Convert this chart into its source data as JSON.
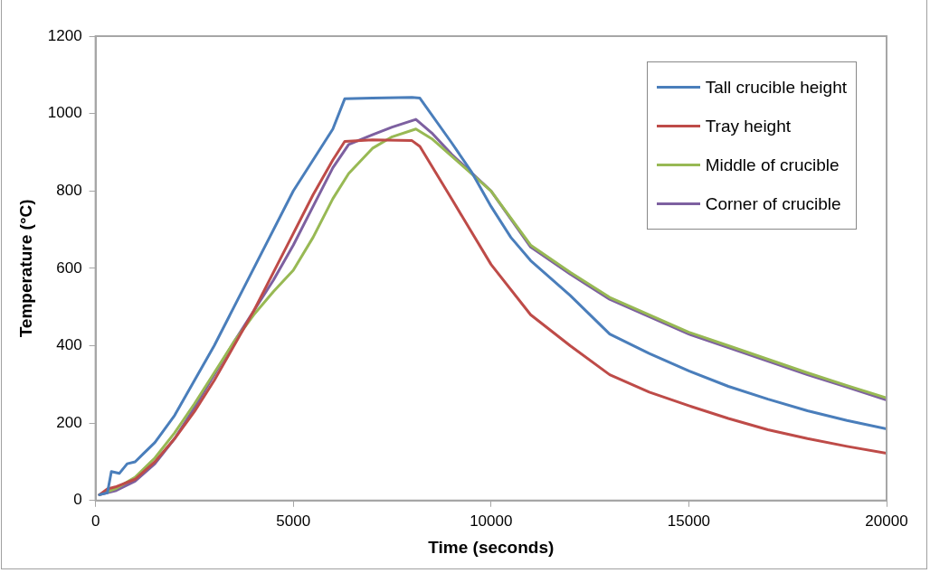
{
  "chart_data": {
    "type": "line",
    "xlabel": "Time (seconds)",
    "ylabel": "Temperature (°C)",
    "xlim": [
      0,
      20000
    ],
    "xticks": [
      0,
      5000,
      10000,
      15000,
      20000
    ],
    "ylim": [
      0,
      1200
    ],
    "yticks": [
      0,
      200,
      400,
      600,
      800,
      1000,
      1200
    ],
    "grid": false,
    "legend": "top right",
    "marker": "none",
    "line_style": "solid",
    "series": [
      {
        "name": "Tall crucible height",
        "color": "#4a7ebb",
        "x": [
          100,
          300,
          400,
          600,
          800,
          1000,
          1200,
          1500,
          2000,
          3000,
          4000,
          5000,
          6000,
          6300,
          7000,
          8000,
          8200,
          9000,
          9500,
          10000,
          10500,
          11000,
          12000,
          13000,
          14000,
          15000,
          16000,
          17000,
          18000,
          19000,
          20000
        ],
        "values": [
          15,
          20,
          75,
          70,
          95,
          100,
          120,
          150,
          220,
          400,
          600,
          800,
          960,
          1038,
          1040,
          1042,
          1040,
          925,
          850,
          760,
          680,
          620,
          530,
          430,
          380,
          335,
          295,
          262,
          232,
          207,
          185
        ]
      },
      {
        "name": "Tray height",
        "color": "#be4b48",
        "x": [
          100,
          300,
          500,
          1000,
          1500,
          2000,
          2500,
          3000,
          3500,
          4000,
          4500,
          5000,
          5500,
          6000,
          6300,
          7000,
          8000,
          8200,
          9000,
          10000,
          11000,
          12000,
          13000,
          14000,
          15000,
          16000,
          17000,
          18000,
          19000,
          20000
        ],
        "values": [
          15,
          30,
          35,
          55,
          100,
          160,
          230,
          310,
          400,
          490,
          590,
          690,
          790,
          880,
          928,
          932,
          930,
          915,
          780,
          610,
          480,
          400,
          325,
          280,
          245,
          212,
          183,
          160,
          140,
          122
        ]
      },
      {
        "name": "Middle of crucible",
        "color": "#98b954",
        "x": [
          100,
          500,
          1000,
          1500,
          2000,
          2500,
          3000,
          3500,
          4000,
          4500,
          5000,
          5500,
          6000,
          6400,
          7000,
          7500,
          8100,
          8500,
          9000,
          10000,
          11000,
          12000,
          13000,
          14000,
          15000,
          16000,
          17000,
          18000,
          19000,
          20000
        ],
        "values": [
          15,
          30,
          60,
          110,
          175,
          250,
          330,
          410,
          480,
          540,
          595,
          680,
          780,
          845,
          910,
          940,
          960,
          935,
          890,
          800,
          660,
          590,
          525,
          480,
          435,
          400,
          365,
          330,
          297,
          265
        ]
      },
      {
        "name": "Corner of crucible",
        "color": "#7d60a0",
        "x": [
          100,
          500,
          1000,
          1500,
          2000,
          2500,
          3000,
          3500,
          4000,
          4500,
          5000,
          5500,
          6000,
          6400,
          7000,
          7500,
          8100,
          8500,
          9000,
          10000,
          11000,
          12000,
          13000,
          14000,
          15000,
          16000,
          17000,
          18000,
          19000,
          20000
        ],
        "values": [
          15,
          25,
          50,
          95,
          160,
          240,
          325,
          410,
          490,
          570,
          660,
          760,
          860,
          920,
          945,
          965,
          985,
          950,
          895,
          800,
          655,
          585,
          520,
          475,
          430,
          395,
          360,
          325,
          293,
          260
        ]
      }
    ]
  }
}
